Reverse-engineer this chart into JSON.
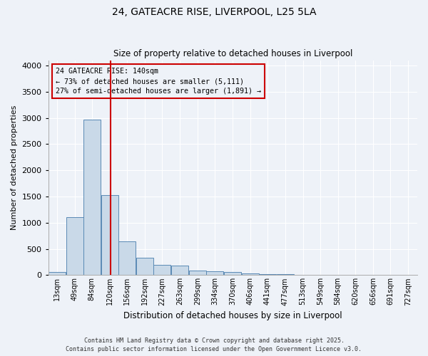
{
  "title_line1": "24, GATEACRE RISE, LIVERPOOL, L25 5LA",
  "title_line2": "Size of property relative to detached houses in Liverpool",
  "xlabel": "Distribution of detached houses by size in Liverpool",
  "ylabel": "Number of detached properties",
  "annotation_line1": "24 GATEACRE RISE: 140sqm",
  "annotation_line2": "← 73% of detached houses are smaller (5,111)",
  "annotation_line3": "27% of semi-detached houses are larger (1,891) →",
  "property_line_x": 140,
  "footer_line1": "Contains HM Land Registry data © Crown copyright and database right 2025.",
  "footer_line2": "Contains public sector information licensed under the Open Government Licence v3.0.",
  "bar_color": "#c9d9e8",
  "bar_edge_color": "#5a8ab5",
  "vline_color": "#cc0000",
  "annotation_box_color": "#cc0000",
  "background_color": "#eef2f8",
  "grid_color": "#ffffff",
  "categories": [
    "13sqm",
    "49sqm",
    "84sqm",
    "120sqm",
    "156sqm",
    "192sqm",
    "227sqm",
    "263sqm",
    "299sqm",
    "334sqm",
    "370sqm",
    "406sqm",
    "441sqm",
    "477sqm",
    "513sqm",
    "549sqm",
    "584sqm",
    "620sqm",
    "656sqm",
    "691sqm",
    "727sqm"
  ],
  "bin_left_edges": [
    13,
    49,
    84,
    120,
    156,
    192,
    227,
    263,
    299,
    334,
    370,
    406,
    441,
    477,
    513,
    549,
    584,
    620,
    656,
    691,
    727
  ],
  "bin_width": 35,
  "values": [
    60,
    1100,
    2970,
    1530,
    650,
    330,
    190,
    180,
    90,
    70,
    55,
    30,
    20,
    15,
    10,
    8,
    5,
    5,
    3,
    3,
    2
  ],
  "ylim": [
    0,
    4100
  ],
  "yticks": [
    0,
    500,
    1000,
    1500,
    2000,
    2500,
    3000,
    3500,
    4000
  ],
  "xlim_left": 13,
  "xlim_right": 763
}
